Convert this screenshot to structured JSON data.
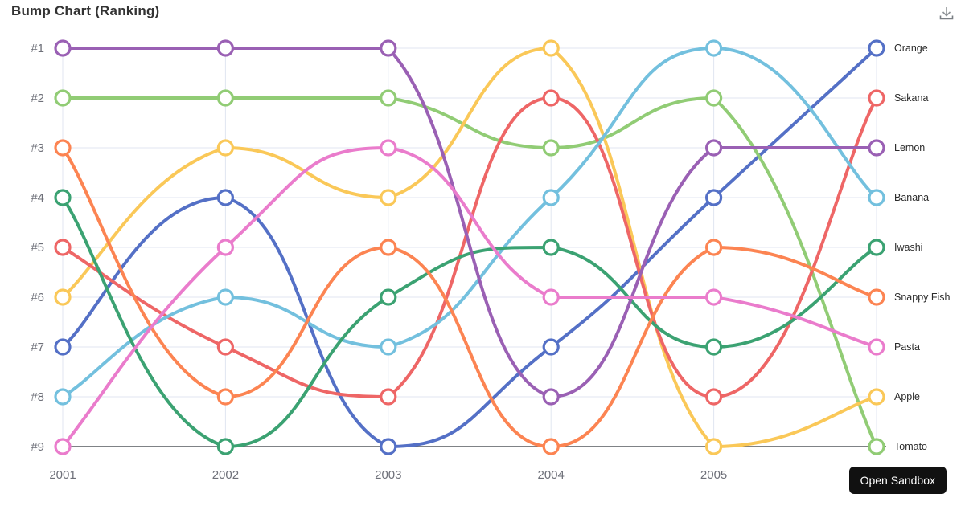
{
  "header": {
    "title": "Bump Chart (Ranking)"
  },
  "toolbar": {
    "download_icon": "download-icon"
  },
  "sandbox": {
    "button_label": "Open Sandbox"
  },
  "palette": {
    "grid_line": "#e0e6f1",
    "axis_line": "#55595f",
    "axis_label": "#6e7079",
    "end_label": "#2b2b2b",
    "symbol_fill": "#ffffff"
  },
  "chart_data": {
    "type": "line",
    "variant": "bump-ranking",
    "title": "Bump Chart (Ranking)",
    "xlabel": "",
    "ylabel": "",
    "x": [
      "2001",
      "2002",
      "2003",
      "2004",
      "2005",
      ""
    ],
    "x_note": "sixth column has data points and end labels but its tick label is not visible (covered by Open Sandbox button)",
    "y_tick_labels": [
      "#1",
      "#2",
      "#3",
      "#4",
      "#5",
      "#6",
      "#7",
      "#8",
      "#9"
    ],
    "ylim": [
      1,
      9
    ],
    "y_inverted": true,
    "grid": true,
    "smooth": true,
    "legend_position": "end-labels-right",
    "series": [
      {
        "name": "Orange",
        "color": "#5470c6",
        "ranks": [
          7,
          4,
          9,
          7,
          4,
          1
        ]
      },
      {
        "name": "Tomato",
        "color": "#91cc75",
        "ranks": [
          2,
          2,
          2,
          3,
          2,
          9
        ]
      },
      {
        "name": "Apple",
        "color": "#fac858",
        "ranks": [
          6,
          3,
          4,
          1,
          9,
          8
        ]
      },
      {
        "name": "Sakana",
        "color": "#ee6666",
        "ranks": [
          5,
          7,
          8,
          2,
          8,
          2
        ]
      },
      {
        "name": "Banana",
        "color": "#73c0de",
        "ranks": [
          8,
          6,
          7,
          4,
          1,
          4
        ]
      },
      {
        "name": "Iwashi",
        "color": "#3ba272",
        "ranks": [
          4,
          9,
          6,
          5,
          7,
          5
        ]
      },
      {
        "name": "Snappy Fish",
        "color": "#fc8452",
        "ranks": [
          3,
          8,
          5,
          9,
          5,
          6
        ]
      },
      {
        "name": "Lemon",
        "color": "#9a60b4",
        "ranks": [
          1,
          1,
          1,
          8,
          3,
          3
        ]
      },
      {
        "name": "Pasta",
        "color": "#ea7ccc",
        "ranks": [
          9,
          5,
          3,
          6,
          6,
          7
        ]
      }
    ]
  }
}
